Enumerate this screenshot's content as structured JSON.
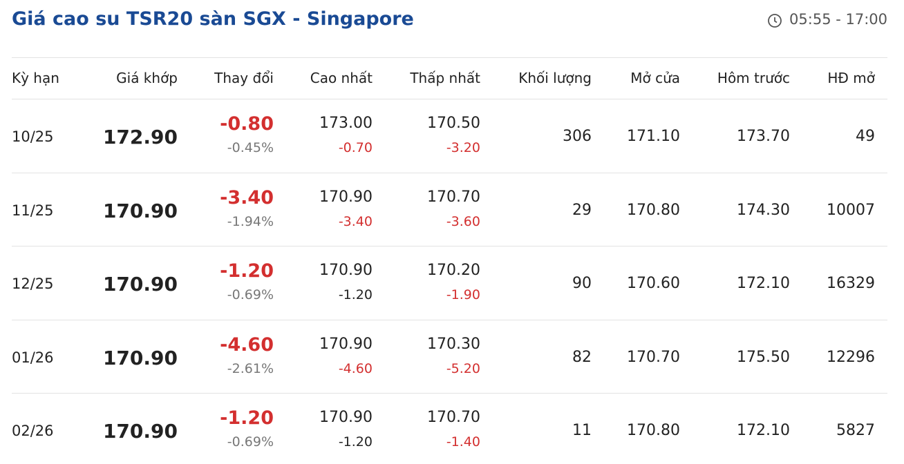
{
  "header": {
    "title": "Giá cao su TSR20 sàn SGX - Singapore",
    "hours": "05:55 - 17:00"
  },
  "table": {
    "columns": [
      "Kỳ hạn",
      "Giá khớp",
      "Thay đổi",
      "Cao nhất",
      "Thấp nhất",
      "Khối lượng",
      "Mở cửa",
      "Hôm trước",
      "HĐ mở"
    ],
    "rows": [
      {
        "term": "10/25",
        "price": "172.90",
        "change": "-0.80",
        "change_pct": "-0.45%",
        "high": "173.00",
        "high_change": "-0.70",
        "high_change_color": "#d32f2f",
        "low": "170.50",
        "low_change": "-3.20",
        "low_change_color": "#d32f2f",
        "volume": "306",
        "open": "171.10",
        "prev": "173.70",
        "open_interest": "49"
      },
      {
        "term": "11/25",
        "price": "170.90",
        "change": "-3.40",
        "change_pct": "-1.94%",
        "high": "170.90",
        "high_change": "-3.40",
        "high_change_color": "#d32f2f",
        "low": "170.70",
        "low_change": "-3.60",
        "low_change_color": "#d32f2f",
        "volume": "29",
        "open": "170.80",
        "prev": "174.30",
        "open_interest": "10007"
      },
      {
        "term": "12/25",
        "price": "170.90",
        "change": "-1.20",
        "change_pct": "-0.69%",
        "high": "170.90",
        "high_change": "-1.20",
        "high_change_color": "#222222",
        "low": "170.20",
        "low_change": "-1.90",
        "low_change_color": "#d32f2f",
        "volume": "90",
        "open": "170.60",
        "prev": "172.10",
        "open_interest": "16329"
      },
      {
        "term": "01/26",
        "price": "170.90",
        "change": "-4.60",
        "change_pct": "-2.61%",
        "high": "170.90",
        "high_change": "-4.60",
        "high_change_color": "#d32f2f",
        "low": "170.30",
        "low_change": "-5.20",
        "low_change_color": "#d32f2f",
        "volume": "82",
        "open": "170.70",
        "prev": "175.50",
        "open_interest": "12296"
      },
      {
        "term": "02/26",
        "price": "170.90",
        "change": "-1.20",
        "change_pct": "-0.69%",
        "high": "170.90",
        "high_change": "-1.20",
        "high_change_color": "#222222",
        "low": "170.70",
        "low_change": "-1.40",
        "low_change_color": "#d32f2f",
        "volume": "11",
        "open": "170.80",
        "prev": "172.10",
        "open_interest": "5827"
      }
    ]
  }
}
